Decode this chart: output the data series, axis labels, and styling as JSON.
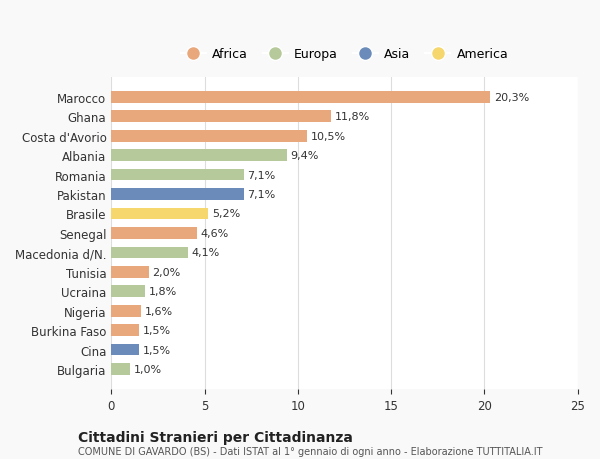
{
  "countries": [
    "Marocco",
    "Ghana",
    "Costa d'Avorio",
    "Albania",
    "Romania",
    "Pakistan",
    "Brasile",
    "Senegal",
    "Macedonia d/N.",
    "Tunisia",
    "Ucraina",
    "Nigeria",
    "Burkina Faso",
    "Cina",
    "Bulgaria"
  ],
  "values": [
    20.3,
    11.8,
    10.5,
    9.4,
    7.1,
    7.1,
    5.2,
    4.6,
    4.1,
    2.0,
    1.8,
    1.6,
    1.5,
    1.5,
    1.0
  ],
  "labels": [
    "20,3%",
    "11,8%",
    "10,5%",
    "9,4%",
    "7,1%",
    "7,1%",
    "5,2%",
    "4,6%",
    "4,1%",
    "2,0%",
    "1,8%",
    "1,6%",
    "1,5%",
    "1,5%",
    "1,0%"
  ],
  "continents": [
    "Africa",
    "Africa",
    "Africa",
    "Europa",
    "Europa",
    "Asia",
    "America",
    "Africa",
    "Europa",
    "Africa",
    "Europa",
    "Africa",
    "Africa",
    "Asia",
    "Europa"
  ],
  "continent_colors": {
    "Africa": "#E8A87C",
    "Europa": "#B5C99A",
    "Asia": "#6B8CBA",
    "America": "#F5D76E"
  },
  "legend_order": [
    "Africa",
    "Europa",
    "Asia",
    "America"
  ],
  "title": "Cittadini Stranieri per Cittadinanza",
  "subtitle": "COMUNE DI GAVARDO (BS) - Dati ISTAT al 1° gennaio di ogni anno - Elaborazione TUTTITALIA.IT",
  "xlim": [
    0,
    25
  ],
  "xticks": [
    0,
    5,
    10,
    15,
    20,
    25
  ],
  "background_color": "#f9f9f9",
  "bar_background": "#ffffff",
  "grid_color": "#dddddd"
}
